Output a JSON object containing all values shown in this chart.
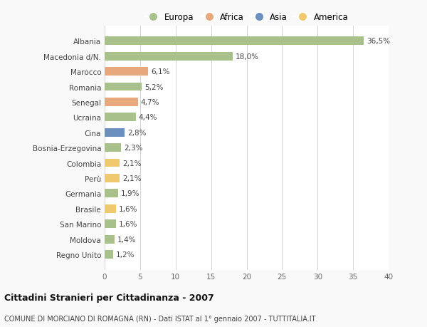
{
  "categories": [
    "Albania",
    "Macedonia d/N.",
    "Marocco",
    "Romania",
    "Senegal",
    "Ucraina",
    "Cina",
    "Bosnia-Erzegovina",
    "Colombia",
    "Perù",
    "Germania",
    "Brasile",
    "San Marino",
    "Moldova",
    "Regno Unito"
  ],
  "values": [
    36.5,
    18.0,
    6.1,
    5.2,
    4.7,
    4.4,
    2.8,
    2.3,
    2.1,
    2.1,
    1.9,
    1.6,
    1.6,
    1.4,
    1.2
  ],
  "labels": [
    "36,5%",
    "18,0%",
    "6,1%",
    "5,2%",
    "4,7%",
    "4,4%",
    "2,8%",
    "2,3%",
    "2,1%",
    "2,1%",
    "1,9%",
    "1,6%",
    "1,6%",
    "1,4%",
    "1,2%"
  ],
  "continent": [
    "Europa",
    "Europa",
    "Africa",
    "Europa",
    "Africa",
    "Europa",
    "Asia",
    "Europa",
    "America",
    "America",
    "Europa",
    "America",
    "Europa",
    "Europa",
    "Europa"
  ],
  "colors": {
    "Europa": "#a8c08a",
    "Africa": "#e8a87c",
    "Asia": "#6b8fbf",
    "America": "#f0c96e"
  },
  "xlim": [
    0,
    40
  ],
  "xticks": [
    0,
    5,
    10,
    15,
    20,
    25,
    30,
    35,
    40
  ],
  "title_main": "Cittadini Stranieri per Cittadinanza - 2007",
  "title_sub": "COMUNE DI MORCIANO DI ROMAGNA (RN) - Dati ISTAT al 1° gennaio 2007 - TUTTITALIA.IT",
  "background_color": "#f9f9f9",
  "bar_bg_color": "#ffffff",
  "grid_color": "#cccccc",
  "legend_order": [
    "Europa",
    "Africa",
    "Asia",
    "America"
  ]
}
